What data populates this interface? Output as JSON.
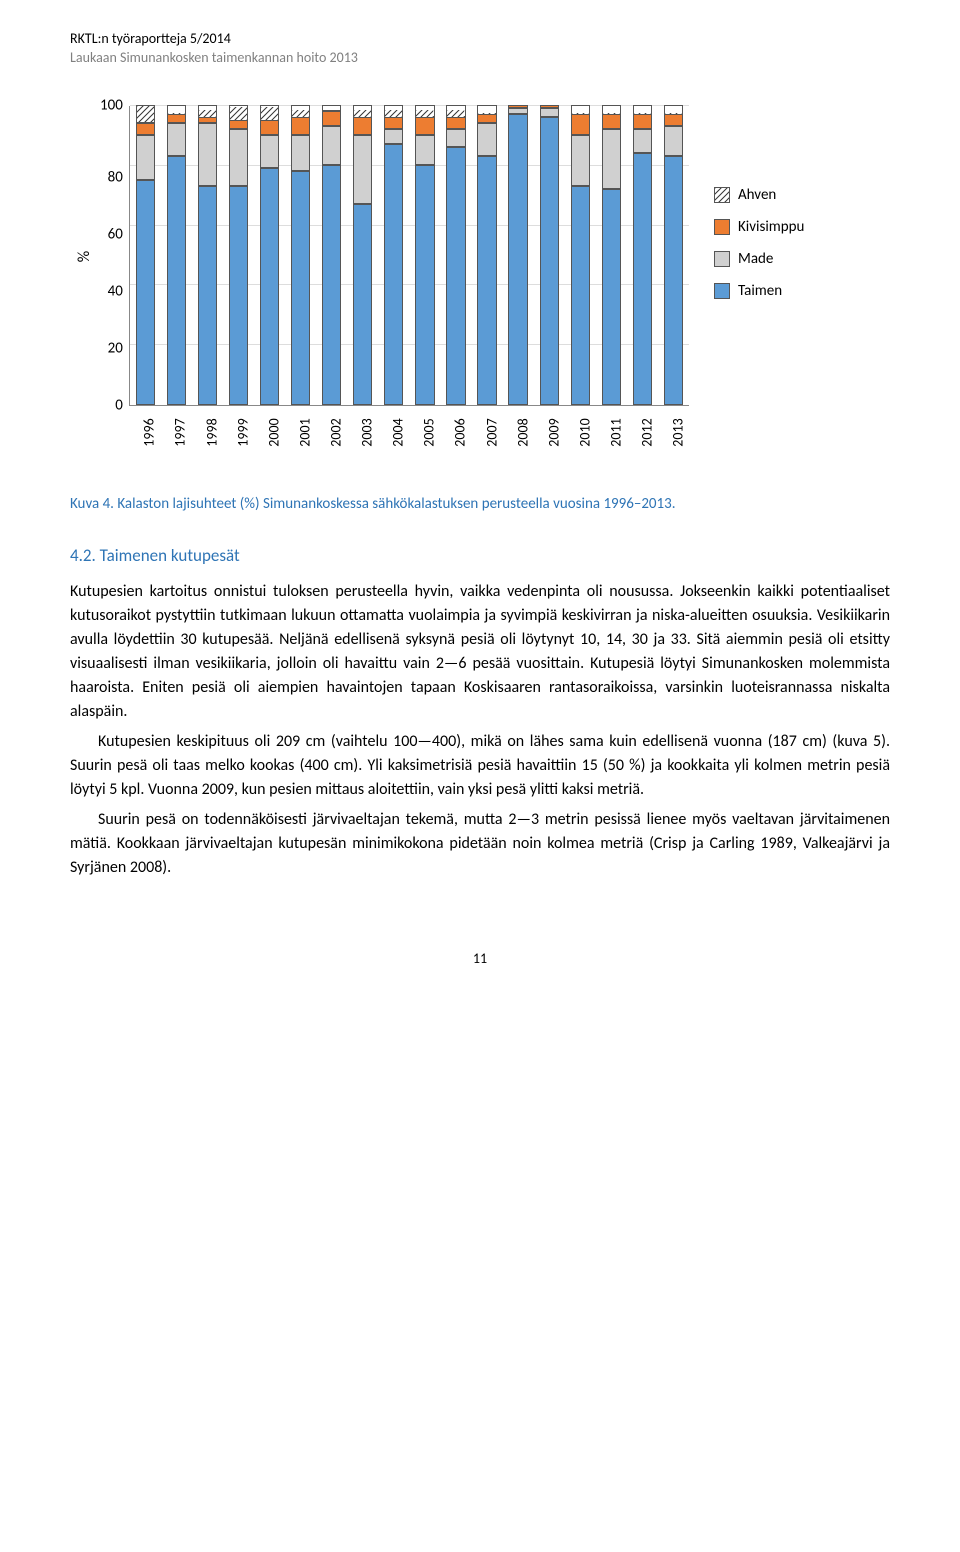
{
  "header": {
    "line1": "RKTL:n työraportteja 5/2014",
    "line2": "Laukaan Simunankosken taimenkannan hoito 2013"
  },
  "chart": {
    "type": "stacked-bar",
    "ylabel": "%",
    "ylim": [
      0,
      100
    ],
    "ytick_step": 20,
    "yticks": [
      "100",
      "80",
      "60",
      "40",
      "20",
      "0"
    ],
    "background_color": "#ffffff",
    "grid_color": "#dddddd",
    "categories": [
      "1996",
      "1997",
      "1998",
      "1999",
      "2000",
      "2001",
      "2002",
      "2003",
      "2004",
      "2005",
      "2006",
      "2007",
      "2008",
      "2009",
      "2010",
      "2011",
      "2012",
      "2013"
    ],
    "series": [
      {
        "name": "Taimen",
        "color": "#5b9bd5",
        "pattern": "solid"
      },
      {
        "name": "Made",
        "color": "#d0d0d0",
        "pattern": "solid"
      },
      {
        "name": "Kivisimppu",
        "color": "#ed7d31",
        "pattern": "solid"
      },
      {
        "name": "Ahven",
        "color": "#ffffff",
        "pattern": "hatch"
      }
    ],
    "data": {
      "Taimen": [
        75,
        83,
        73,
        73,
        79,
        78,
        80,
        67,
        87,
        80,
        86,
        83,
        97,
        96,
        73,
        72,
        84,
        83
      ],
      "Made": [
        15,
        11,
        21,
        19,
        11,
        12,
        13,
        23,
        5,
        10,
        6,
        11,
        2,
        3,
        17,
        20,
        8,
        10
      ],
      "Kivisimppu": [
        4,
        3,
        2,
        3,
        5,
        6,
        5,
        6,
        4,
        6,
        4,
        3,
        1,
        1,
        7,
        5,
        5,
        4
      ],
      "Ahven": [
        6,
        3,
        4,
        5,
        5,
        4,
        2,
        4,
        4,
        4,
        4,
        3,
        0,
        0,
        3,
        3,
        3,
        3
      ]
    },
    "legend_order": [
      "Ahven",
      "Kivisimppu",
      "Made",
      "Taimen"
    ],
    "bar_border": "#555555"
  },
  "caption": "Kuva 4. Kalaston lajisuhteet (%) Simunankoskessa sähkökalastuksen perusteella vuosina 1996–2013.",
  "section": {
    "number": "4.2.",
    "title": "Taimenen kutupesät"
  },
  "paragraphs": {
    "p1": "Kutupesien kartoitus onnistui tuloksen perusteella hyvin, vaikka vedenpinta oli nousussa. Jokseenkin kaikki potentiaaliset kutusoraikot pystyttiin tutkimaan lukuun ottamatta vuolaimpia ja syvimpiä keskivirran ja niska-alueitten osuuksia. Vesikiikarin avulla löydettiin 30 kutupesää. Neljänä edellisenä syksynä pesiä oli löytynyt 10, 14, 30 ja 33. Sitä aiemmin pesiä oli etsitty visuaalisesti ilman vesikiikaria, jolloin oli havaittu vain 2—6 pesää vuosittain. Kutupesiä löytyi Simunankosken molemmista haaroista. Eniten pesiä oli aiempien havaintojen tapaan Koskisaaren rantasoraikoissa, varsinkin luoteisrannassa niskalta alaspäin.",
    "p2": "Kutupesien keskipituus oli 209 cm (vaihtelu 100—400), mikä on lähes sama kuin edellisenä vuonna (187 cm) (kuva 5). Suurin pesä oli taas melko kookas (400 cm). Yli kaksimetrisiä pesiä havaittiin 15 (50 %) ja kookkaita yli kolmen metrin pesiä löytyi 5 kpl. Vuonna 2009, kun pesien mittaus aloitettiin, vain yksi pesä ylitti kaksi metriä.",
    "p3": "Suurin pesä on todennäköisesti järvivaeltajan tekemä, mutta 2—3 metrin pesissä lienee myös vaeltavan järvitaimenen mätiä. Kookkaan järvivaeltajan kutupesän minimikokona pidetään noin kolmea metriä (Crisp ja Carling 1989, Valkeajärvi ja Syrjänen 2008)."
  },
  "page_number": "11"
}
